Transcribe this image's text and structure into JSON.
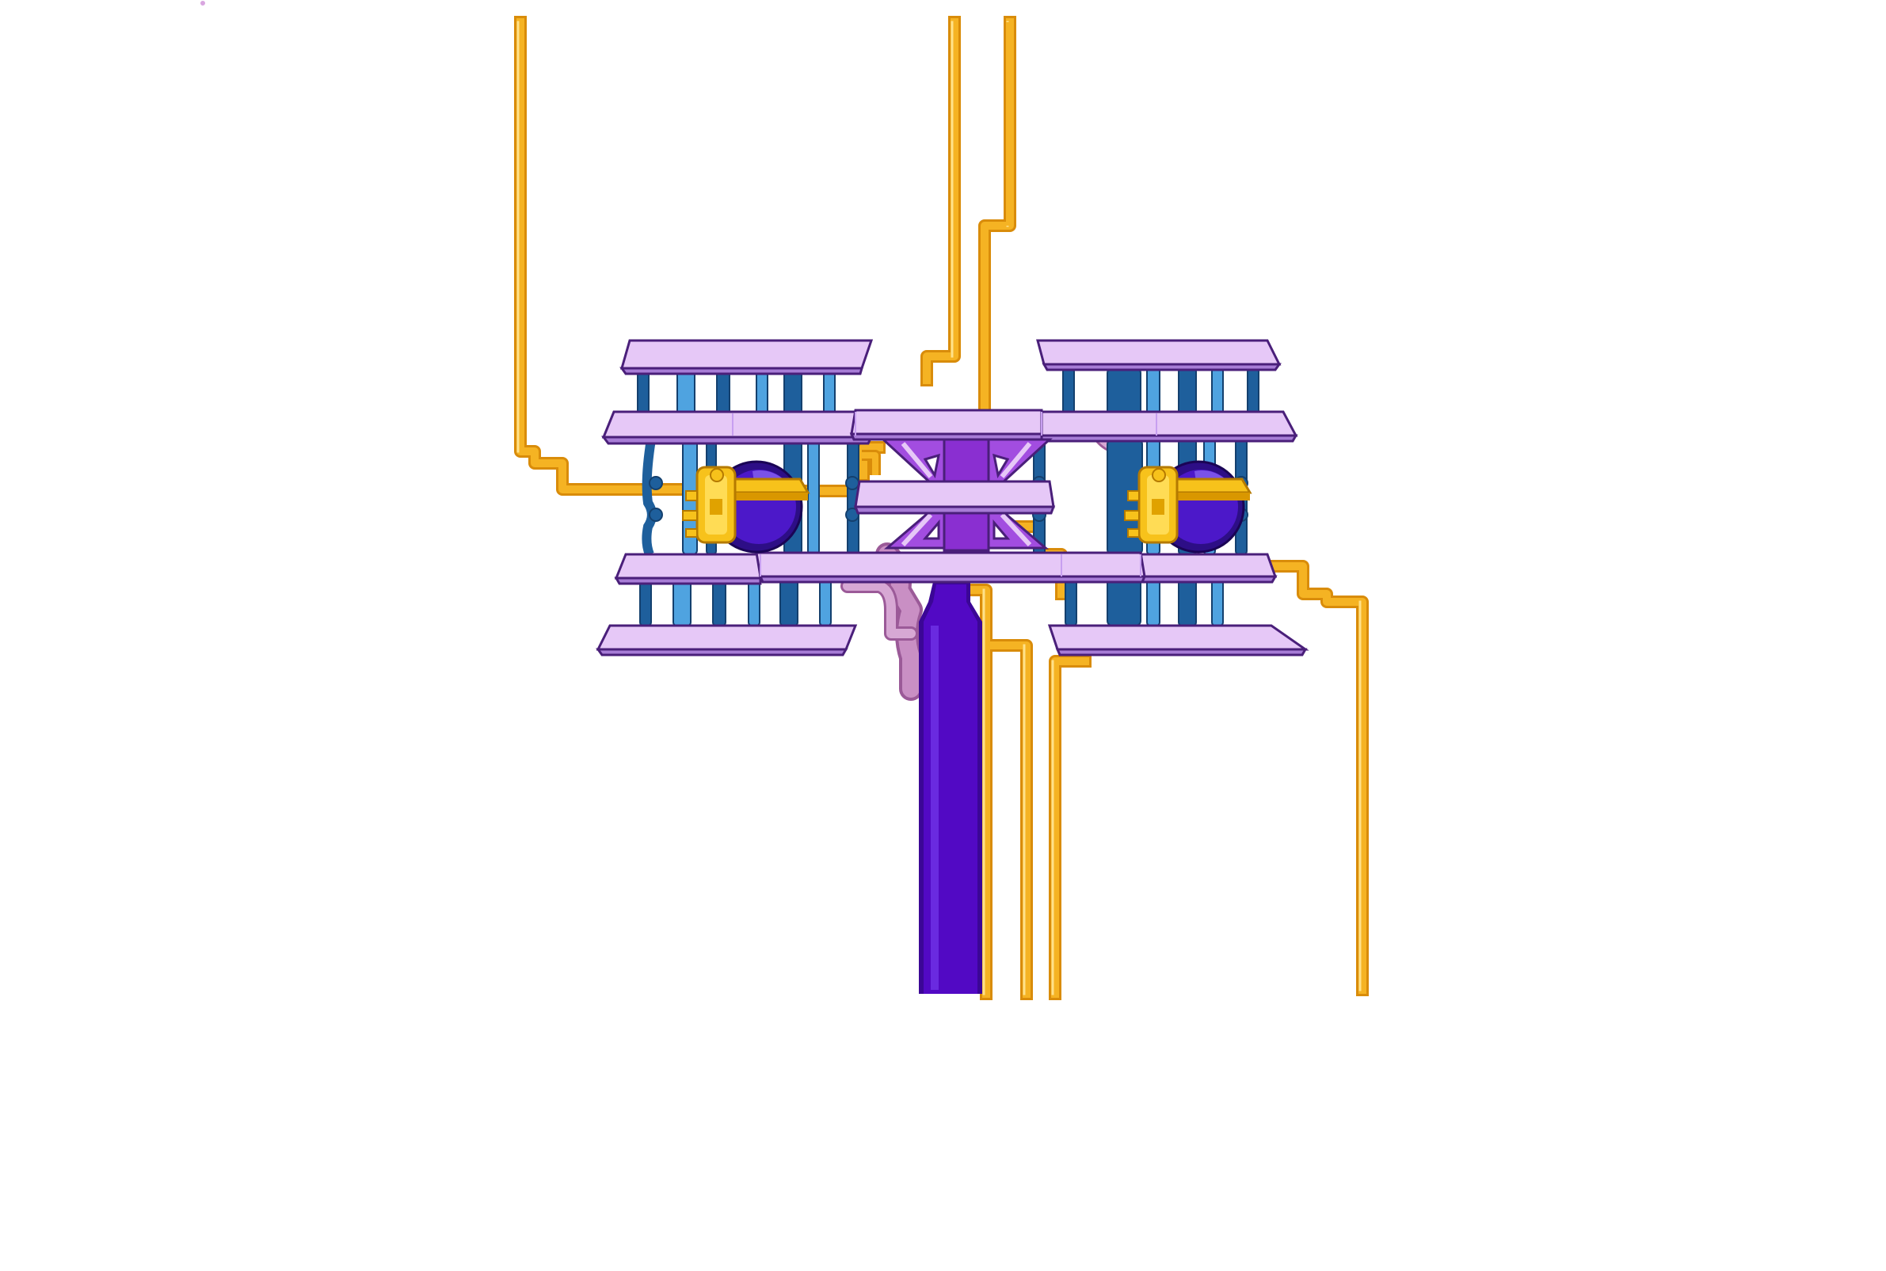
{
  "scene": {
    "background": "#ffffff",
    "palette": {
      "platform_top": "#e6c8f7",
      "platform_face": "#c79ff0",
      "platform_outline": "#4a1f7a",
      "strut_dark": "#1e5f9c",
      "strut_light": "#4fa3e0",
      "mast": "#5209c4",
      "mast_dark": "#3b0696",
      "brace": "#a24de0",
      "wire": "#f5b323",
      "wire_shadow": "#d98c0a",
      "conduit": "#c98fc4",
      "engine_gold": "#f7c21b",
      "engine_dome": "#4c18c9"
    },
    "elements": {
      "left_module": "stacked-platform-module",
      "right_module": "stacked-platform-module",
      "hub": "central-hub",
      "mast": "support-mast",
      "engines": [
        "turbine-engine-left",
        "turbine-engine-right"
      ],
      "wires": "power-cables"
    }
  }
}
